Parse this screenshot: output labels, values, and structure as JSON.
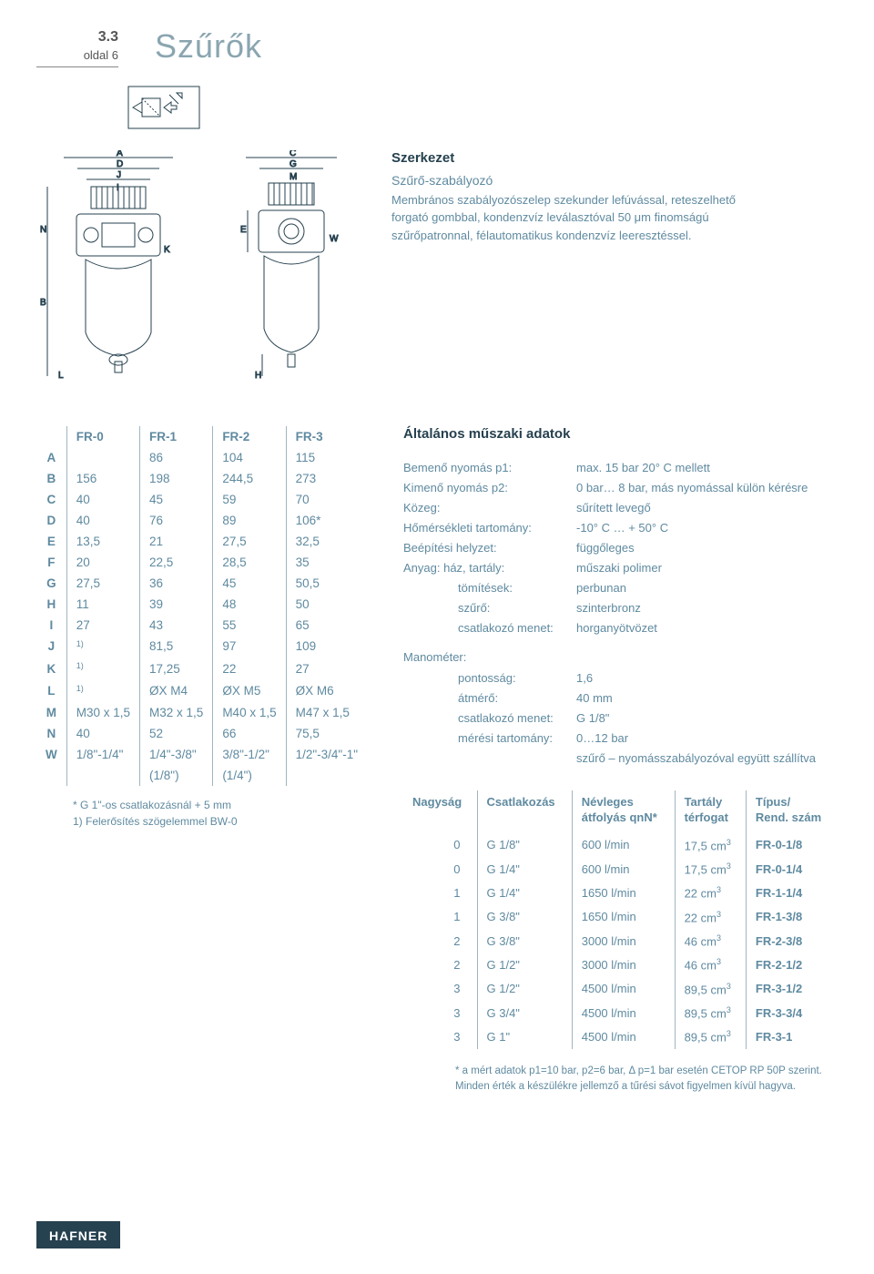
{
  "header": {
    "section": "3.3",
    "page_label": "oldal 6",
    "title": "Szűrők"
  },
  "szerkezet": {
    "heading": "Szerkezet",
    "subtitle": "Szűrő-szabályozó",
    "body": "Membrános szabályozószelep szekunder lefúvással, reteszelhető forgató gombbal, kondenzvíz leválasztóval 50 μm finomságú szűrőpatronnal, félautomatikus kondenzvíz leeresztéssel."
  },
  "dim_table": {
    "headers": [
      "",
      "FR-0",
      "FR-1",
      "FR-2",
      "FR-3"
    ],
    "rows": [
      [
        "A",
        "",
        "86",
        "104",
        "115"
      ],
      [
        "B",
        "156",
        "198",
        "244,5",
        "273"
      ],
      [
        "C",
        "40",
        "45",
        "59",
        "70"
      ],
      [
        "D",
        "40",
        "76",
        "89",
        "106*"
      ],
      [
        "E",
        "13,5",
        "21",
        "27,5",
        "32,5"
      ],
      [
        "F",
        "20",
        "22,5",
        "28,5",
        "35"
      ],
      [
        "G",
        "27,5",
        "36",
        "45",
        "50,5"
      ],
      [
        "H",
        "11",
        "39",
        "48",
        "50"
      ],
      [
        "I",
        "27",
        "43",
        "55",
        "65"
      ],
      [
        "J",
        "1)",
        "81,5",
        "97",
        "109"
      ],
      [
        "K",
        "1)",
        "17,25",
        "22",
        "27"
      ],
      [
        "L",
        "1)",
        "ØX M4",
        "ØX M5",
        "ØX M6"
      ],
      [
        "M",
        "M30 x 1,5",
        "M32 x 1,5",
        "M40 x 1,5",
        "M47 x 1,5"
      ],
      [
        "N",
        "40",
        "52",
        "66",
        "75,5"
      ],
      [
        "W",
        "1/8\"-1/4\"",
        "1/4\"-3/8\"",
        "3/8\"-1/2\"",
        "1/2\"-3/4\"-1\""
      ],
      [
        "",
        "",
        "(1/8\")",
        "(1/4\")",
        ""
      ]
    ],
    "note1": "*  G 1\"-os csatlakozásnál + 5 mm",
    "note2": "1) Felerősítés szögelemmel BW-0"
  },
  "tech": {
    "heading": "Általános műszaki adatok",
    "rows1": [
      {
        "label": "Bemenő nyomás p1:",
        "val": "max. 15 bar 20° C mellett"
      },
      {
        "label": "Kimenő nyomás p2:",
        "val": "0 bar… 8 bar, más nyomással külön kérésre"
      },
      {
        "label": "Közeg:",
        "val": "sűrített levegő"
      },
      {
        "label": "Hőmérsékleti tartomány:",
        "val": "-10° C … + 50° C"
      },
      {
        "label": "Beépítési helyzet:",
        "val": "függőleges"
      },
      {
        "label": "Anyag: ház, tartály:",
        "val": "műszaki polimer"
      }
    ],
    "rows1_indent": [
      {
        "label": "tömítések:",
        "val": "perbunan"
      },
      {
        "label": "szűrő:",
        "val": "szinterbronz"
      },
      {
        "label": "csatlakozó menet:",
        "val": "horganyötvözet"
      }
    ],
    "manometer_label": "Manométer:",
    "rows2": [
      {
        "label": "pontosság:",
        "val": "1,6"
      },
      {
        "label": "átmérő:",
        "val": "40 mm"
      },
      {
        "label": "csatlakozó menet:",
        "val": "G 1/8\""
      },
      {
        "label": "mérési tartomány:",
        "val": "0…12 bar"
      }
    ],
    "tail": "szűrő – nyomásszabályozóval együtt szállítva"
  },
  "order": {
    "headers": [
      "Nagyság",
      "Csatlakozás",
      "Névleges átfolyás qnN*",
      "Tartály térfogat",
      "Típus/ Rend. szám"
    ],
    "rows": [
      [
        "0",
        "G 1/8\"",
        "600 l/min",
        "17,5 cm³",
        "FR-0-1/8"
      ],
      [
        "0",
        "G 1/4\"",
        "600 l/min",
        "17,5 cm³",
        "FR-0-1/4"
      ],
      [
        "1",
        "G 1/4\"",
        "1650 l/min",
        "22   cm³",
        "FR-1-1/4"
      ],
      [
        "1",
        "G 3/8\"",
        "1650 l/min",
        "22   cm³",
        "FR-1-3/8"
      ],
      [
        "2",
        "G 3/8\"",
        "3000 l/min",
        "46   cm³",
        "FR-2-3/8"
      ],
      [
        "2",
        "G 1/2\"",
        "3000 l/min",
        "46   cm³",
        "FR-2-1/2"
      ],
      [
        "3",
        "G 1/2\"",
        "4500 l/min",
        "89,5 cm³",
        "FR-3-1/2"
      ],
      [
        "3",
        "G 3/4\"",
        "4500 l/min",
        "89,5 cm³",
        "FR-3-3/4"
      ],
      [
        "3",
        "G 1\"",
        "4500 l/min",
        "89,5 cm³",
        "FR-3-1"
      ]
    ]
  },
  "footnote": "* a mért adatok p1=10 bar, p2=6 bar, Δ p=1 bar esetén CETOP RP 50P szerint. Minden érték a készülékre jellemző a tűrési sávot figyelmen kívül hagyva.",
  "brand": "HAFNER",
  "colors": {
    "accent": "#5f8aa0",
    "heading": "#26414f",
    "title": "#8aa5b0",
    "rule": "#9fb5c0"
  },
  "drawing_labels": {
    "front": [
      "A",
      "D",
      "J",
      "I",
      "N",
      "B",
      "L",
      "K"
    ],
    "side": [
      "C",
      "G",
      "M",
      "E",
      "W",
      "H"
    ]
  }
}
